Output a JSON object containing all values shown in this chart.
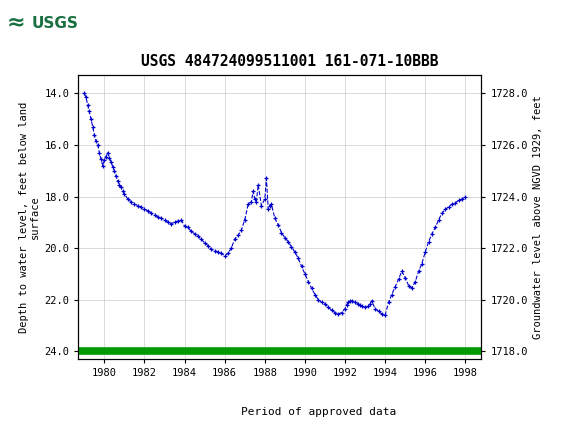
{
  "title": "USGS 484724099511001 161-071-10BBB",
  "ylabel_left": "Depth to water level, feet below land\nsurface",
  "ylabel_right": "Groundwater level above NGVD 1929, feet",
  "xlim": [
    1978.7,
    1998.8
  ],
  "ylim_left": [
    24.3,
    13.3
  ],
  "ylim_right": [
    1717.7,
    1728.7
  ],
  "xticks": [
    1980,
    1982,
    1984,
    1986,
    1988,
    1990,
    1992,
    1994,
    1996,
    1998
  ],
  "yticks_left": [
    14.0,
    16.0,
    18.0,
    20.0,
    22.0,
    24.0
  ],
  "yticks_right": [
    1718.0,
    1720.0,
    1722.0,
    1724.0,
    1726.0,
    1728.0
  ],
  "line_color": "#0000CC",
  "green_color": "#009900",
  "header_bg_color": "#1a7040",
  "bg_color": "#ffffff",
  "grid_color": "#cccccc",
  "legend_label": "Period of approved data",
  "data_x": [
    1979.0,
    1979.08,
    1979.17,
    1979.25,
    1979.33,
    1979.42,
    1979.5,
    1979.58,
    1979.67,
    1979.75,
    1979.83,
    1979.92,
    1980.0,
    1980.08,
    1980.17,
    1980.25,
    1980.33,
    1980.42,
    1980.5,
    1980.58,
    1980.67,
    1980.75,
    1980.83,
    1980.92,
    1981.0,
    1981.17,
    1981.33,
    1981.5,
    1981.67,
    1981.83,
    1982.0,
    1982.17,
    1982.33,
    1982.5,
    1982.67,
    1982.83,
    1983.0,
    1983.17,
    1983.33,
    1983.5,
    1983.67,
    1983.83,
    1984.0,
    1984.17,
    1984.33,
    1984.5,
    1984.67,
    1984.83,
    1985.0,
    1985.17,
    1985.33,
    1985.5,
    1985.67,
    1985.83,
    1986.0,
    1986.17,
    1986.33,
    1986.5,
    1986.67,
    1986.83,
    1987.0,
    1987.17,
    1987.33,
    1987.42,
    1987.5,
    1987.58,
    1987.67,
    1987.83,
    1988.0,
    1988.08,
    1988.17,
    1988.25,
    1988.33,
    1988.5,
    1988.67,
    1988.83,
    1989.0,
    1989.17,
    1989.33,
    1989.5,
    1989.67,
    1989.83,
    1990.0,
    1990.17,
    1990.33,
    1990.5,
    1990.67,
    1990.83,
    1991.0,
    1991.17,
    1991.33,
    1991.5,
    1991.67,
    1991.83,
    1992.0,
    1992.08,
    1992.17,
    1992.25,
    1992.33,
    1992.5,
    1992.67,
    1992.75,
    1992.83,
    1993.0,
    1993.17,
    1993.25,
    1993.33,
    1993.5,
    1993.67,
    1993.83,
    1994.0,
    1994.17,
    1994.33,
    1994.5,
    1994.67,
    1994.83,
    1995.0,
    1995.17,
    1995.33,
    1995.5,
    1995.67,
    1995.83,
    1996.0,
    1996.17,
    1996.33,
    1996.5,
    1996.67,
    1996.83,
    1997.0,
    1997.17,
    1997.33,
    1997.5,
    1997.67,
    1997.83,
    1998.0
  ],
  "data_y": [
    14.0,
    14.15,
    14.45,
    14.7,
    15.0,
    15.3,
    15.6,
    15.85,
    16.0,
    16.3,
    16.55,
    16.8,
    16.6,
    16.45,
    16.3,
    16.5,
    16.65,
    16.85,
    17.0,
    17.2,
    17.4,
    17.55,
    17.65,
    17.8,
    17.9,
    18.1,
    18.2,
    18.3,
    18.35,
    18.4,
    18.5,
    18.55,
    18.65,
    18.7,
    18.8,
    18.85,
    18.9,
    19.0,
    19.05,
    19.0,
    18.95,
    18.9,
    19.15,
    19.2,
    19.35,
    19.45,
    19.55,
    19.65,
    19.8,
    19.9,
    20.05,
    20.1,
    20.15,
    20.2,
    20.3,
    20.2,
    20.0,
    19.65,
    19.5,
    19.3,
    18.9,
    18.3,
    18.2,
    17.8,
    18.1,
    18.2,
    17.55,
    18.35,
    18.1,
    17.3,
    18.5,
    18.35,
    18.3,
    18.85,
    19.1,
    19.4,
    19.6,
    19.75,
    19.95,
    20.15,
    20.4,
    20.7,
    21.0,
    21.3,
    21.55,
    21.8,
    22.0,
    22.1,
    22.15,
    22.3,
    22.4,
    22.5,
    22.55,
    22.5,
    22.35,
    22.2,
    22.1,
    22.05,
    22.05,
    22.1,
    22.15,
    22.2,
    22.25,
    22.3,
    22.25,
    22.15,
    22.05,
    22.35,
    22.45,
    22.55,
    22.6,
    22.1,
    21.8,
    21.5,
    21.2,
    20.9,
    21.15,
    21.45,
    21.55,
    21.3,
    20.9,
    20.6,
    20.15,
    19.75,
    19.45,
    19.2,
    18.9,
    18.65,
    18.5,
    18.4,
    18.3,
    18.25,
    18.15,
    18.1,
    18.0
  ]
}
